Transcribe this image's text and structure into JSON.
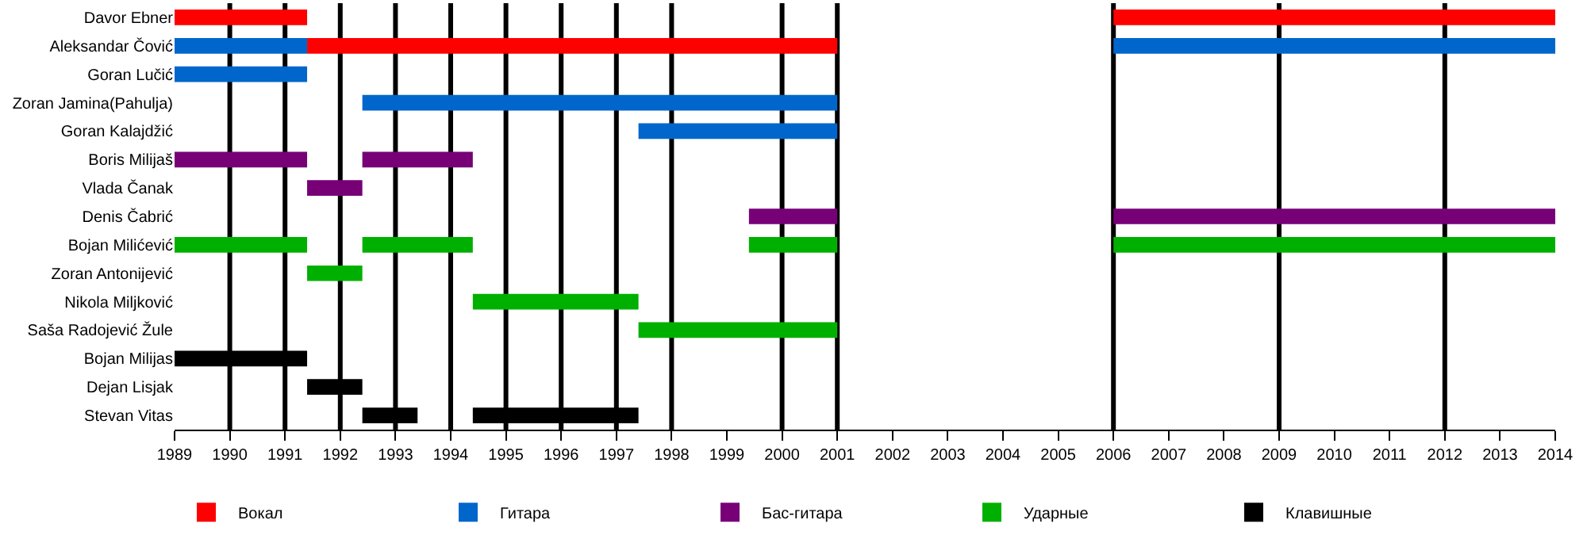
{
  "chart_data": {
    "type": "bar",
    "orientation": "horizontal",
    "categories": [
      "Davor Ebner",
      "Aleksandar Čović",
      "Goran Lučić",
      "Zoran Jamina(Pahulja)",
      "Goran Kalajdžić",
      "Boris Milijaš",
      "Vlada Čanak",
      "Denis Čabrić",
      "Bojan Milićević",
      "Zoran Antonijević",
      "Nikola Miljković",
      "Saša Radojević Žule",
      "Bojan Milijas",
      "Dejan Lisjak",
      "Stevan Vitas"
    ],
    "series": [
      {
        "name": "Вокал",
        "color": "#ff0000",
        "values": [
          2.4,
          9.6,
          null,
          null,
          null,
          null,
          null,
          null,
          null,
          null,
          null,
          null,
          null,
          null,
          null
        ],
        "base": [
          1989,
          1991.4,
          null,
          null,
          null,
          null,
          null,
          null,
          null,
          null,
          null,
          null,
          null,
          null,
          null
        ]
      },
      {
        "color": "#ff0000",
        "values": [
          8,
          null,
          null,
          null,
          null,
          null,
          null,
          null,
          null,
          null,
          null,
          null,
          null,
          null,
          null
        ],
        "base": [
          2006,
          null,
          null,
          null,
          null,
          null,
          null,
          null,
          null,
          null,
          null,
          null,
          null,
          null,
          null
        ]
      },
      {
        "name": "Гитара",
        "color": "#0066cc",
        "values": [
          null,
          2.4,
          2.4,
          8.6,
          3.6,
          null,
          null,
          null,
          null,
          null,
          null,
          null,
          null,
          null,
          null
        ],
        "base": [
          null,
          1989,
          1989,
          1992.4,
          1997.4,
          null,
          null,
          null,
          null,
          null,
          null,
          null,
          null,
          null,
          null
        ]
      },
      {
        "color": "#0066cc",
        "values": [
          null,
          8,
          null,
          null,
          null,
          null,
          null,
          null,
          null,
          null,
          null,
          null,
          null,
          null,
          null
        ],
        "base": [
          null,
          2006,
          null,
          null,
          null,
          null,
          null,
          null,
          null,
          null,
          null,
          null,
          null,
          null,
          null
        ]
      },
      {
        "name": "Бас-гитара",
        "color": "#770077",
        "values": [
          null,
          null,
          null,
          null,
          null,
          2.4,
          1,
          1.6,
          null,
          null,
          null,
          null,
          null,
          null,
          null
        ],
        "base": [
          null,
          null,
          null,
          null,
          null,
          1989,
          1991.4,
          1999.4,
          null,
          null,
          null,
          null,
          null,
          null,
          null
        ]
      },
      {
        "color": "#770077",
        "values": [
          null,
          null,
          null,
          null,
          null,
          2,
          null,
          8,
          null,
          null,
          null,
          null,
          null,
          null,
          null
        ],
        "base": [
          null,
          null,
          null,
          null,
          null,
          1992.4,
          null,
          2006,
          null,
          null,
          null,
          null,
          null,
          null,
          null
        ]
      },
      {
        "name": "Ударные",
        "color": "#00b000",
        "values": [
          null,
          null,
          null,
          null,
          null,
          null,
          null,
          null,
          2.4,
          1,
          3,
          3.6,
          null,
          null,
          null
        ],
        "base": [
          null,
          null,
          null,
          null,
          null,
          null,
          null,
          null,
          1989,
          1991.4,
          1994.4,
          1997.4,
          null,
          null,
          null
        ]
      },
      {
        "color": "#00b000",
        "values": [
          null,
          null,
          null,
          null,
          null,
          null,
          null,
          null,
          2,
          null,
          null,
          null,
          null,
          null,
          null
        ],
        "base": [
          null,
          null,
          null,
          null,
          null,
          null,
          null,
          null,
          1992.4,
          null,
          null,
          null,
          null,
          null,
          null
        ]
      },
      {
        "color": "#00b000",
        "values": [
          null,
          null,
          null,
          null,
          null,
          null,
          null,
          null,
          1.6,
          null,
          null,
          null,
          null,
          null,
          null
        ],
        "base": [
          null,
          null,
          null,
          null,
          null,
          null,
          null,
          null,
          1999.4,
          null,
          null,
          null,
          null,
          null,
          null
        ]
      },
      {
        "color": "#00b000",
        "values": [
          null,
          null,
          null,
          null,
          null,
          null,
          null,
          null,
          8,
          null,
          null,
          null,
          null,
          null,
          null
        ],
        "base": [
          null,
          null,
          null,
          null,
          null,
          null,
          null,
          null,
          2006,
          null,
          null,
          null,
          null,
          null,
          null
        ]
      },
      {
        "name": "Клавишные",
        "color": "#000000",
        "values": [
          null,
          null,
          null,
          null,
          null,
          null,
          null,
          null,
          null,
          null,
          null,
          null,
          2.4,
          1,
          1
        ],
        "base": [
          null,
          null,
          null,
          null,
          null,
          null,
          null,
          null,
          null,
          null,
          null,
          null,
          1989,
          1991.4,
          1992.4
        ]
      },
      {
        "color": "#000000",
        "values": [
          null,
          null,
          null,
          null,
          null,
          null,
          null,
          null,
          null,
          null,
          null,
          null,
          null,
          null,
          3
        ],
        "base": [
          null,
          null,
          null,
          null,
          null,
          null,
          null,
          null,
          null,
          null,
          null,
          null,
          null,
          null,
          1994.4
        ]
      }
    ],
    "xlim": [
      1989,
      2014
    ],
    "xticks": [
      1989,
      1990,
      1991,
      1992,
      1993,
      1994,
      1995,
      1996,
      1997,
      1998,
      1999,
      2000,
      2001,
      2002,
      2003,
      2004,
      2005,
      2006,
      2007,
      2008,
      2009,
      2010,
      2011,
      2012,
      2013,
      2014
    ],
    "ref_lines": [
      {
        "axis": "x",
        "value": 1990,
        "color": "#000000"
      },
      {
        "axis": "x",
        "value": 1991,
        "color": "#000000"
      },
      {
        "axis": "x",
        "value": 1992,
        "color": "#000000"
      },
      {
        "axis": "x",
        "value": 1993,
        "color": "#000000"
      },
      {
        "axis": "x",
        "value": 1994,
        "color": "#000000"
      },
      {
        "axis": "x",
        "value": 1995,
        "color": "#000000"
      },
      {
        "axis": "x",
        "value": 1996,
        "color": "#000000"
      },
      {
        "axis": "x",
        "value": 1997,
        "color": "#000000"
      },
      {
        "axis": "x",
        "value": 1998,
        "color": "#000000"
      },
      {
        "axis": "x",
        "value": 2000,
        "color": "#000000"
      },
      {
        "axis": "x",
        "value": 2001,
        "color": "#000000"
      },
      {
        "axis": "x",
        "value": 2006,
        "color": "#000000"
      },
      {
        "axis": "x",
        "value": 2009,
        "color": "#000000"
      },
      {
        "axis": "x",
        "value": 2012,
        "color": "#000000"
      }
    ],
    "grid": false,
    "legend": "bottom"
  }
}
